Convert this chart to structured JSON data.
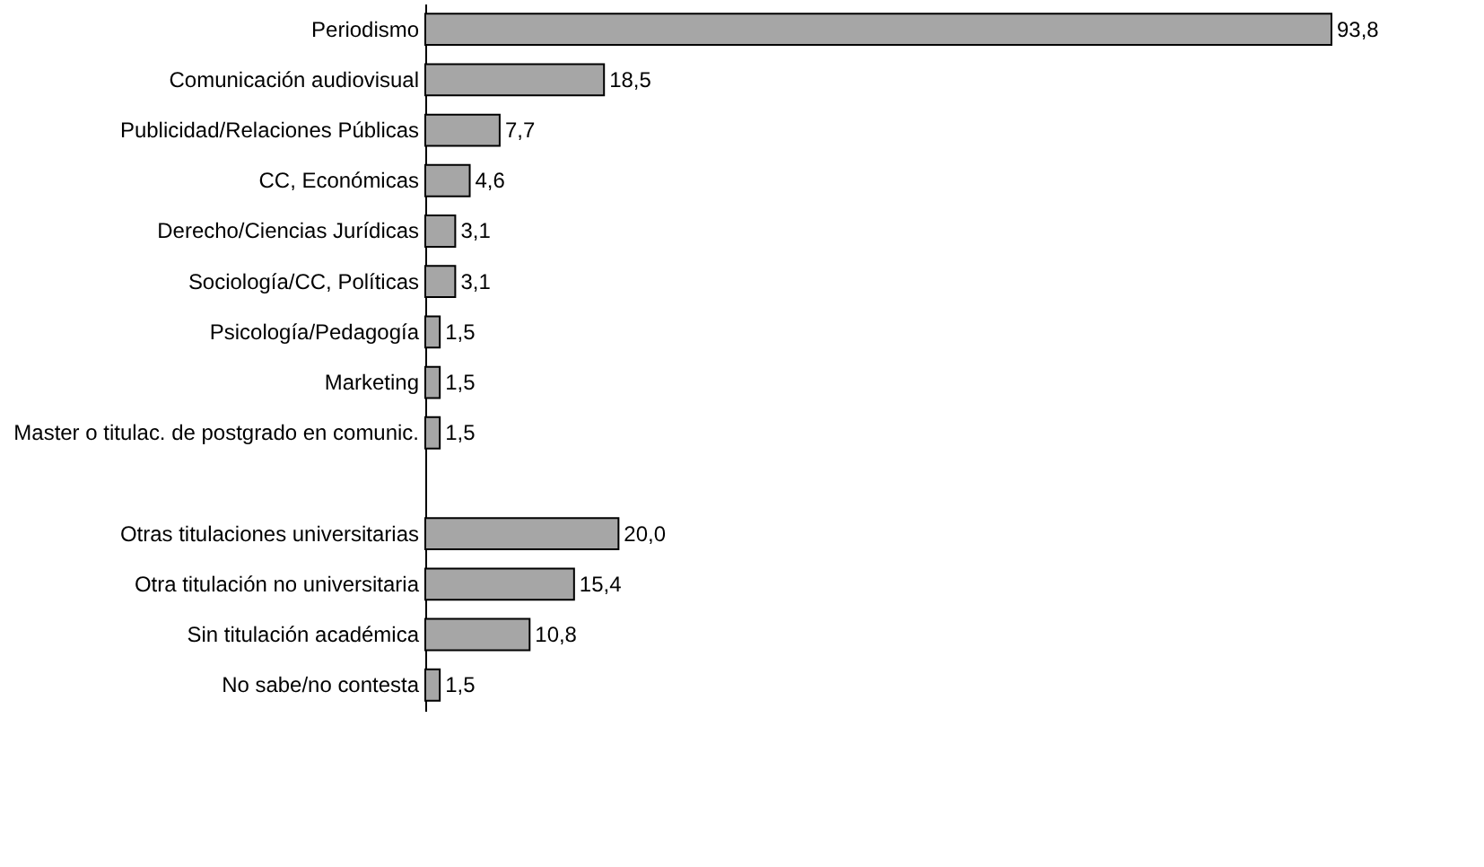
{
  "chart_data": {
    "type": "bar",
    "orientation": "horizontal",
    "categories": [
      "Periodismo",
      "Comunicación audiovisual",
      "Publicidad/Relaciones Públicas",
      "CC, Económicas",
      "Derecho/Ciencias Jurídicas",
      "Sociología/CC, Políticas",
      "Psicología/Pedagogía",
      "Marketing",
      "Master o titulac. de postgrado en comunic.",
      null,
      "Otras titulaciones universitarias",
      "Otra titulación no universitaria",
      "Sin titulación académica",
      "No sabe/no contesta"
    ],
    "values": [
      93.8,
      18.5,
      7.7,
      4.6,
      3.1,
      3.1,
      1.5,
      1.5,
      1.5,
      null,
      20.0,
      15.4,
      10.8,
      1.5
    ],
    "value_labels": [
      "93,8",
      "18,5",
      "7,7",
      "4,6",
      "3,1",
      "3,1",
      "1,5",
      "1,5",
      "1,5",
      null,
      "20,0",
      "15,4",
      "10,8",
      "1,5"
    ],
    "color": "#a6a6a6",
    "grid": false
  }
}
